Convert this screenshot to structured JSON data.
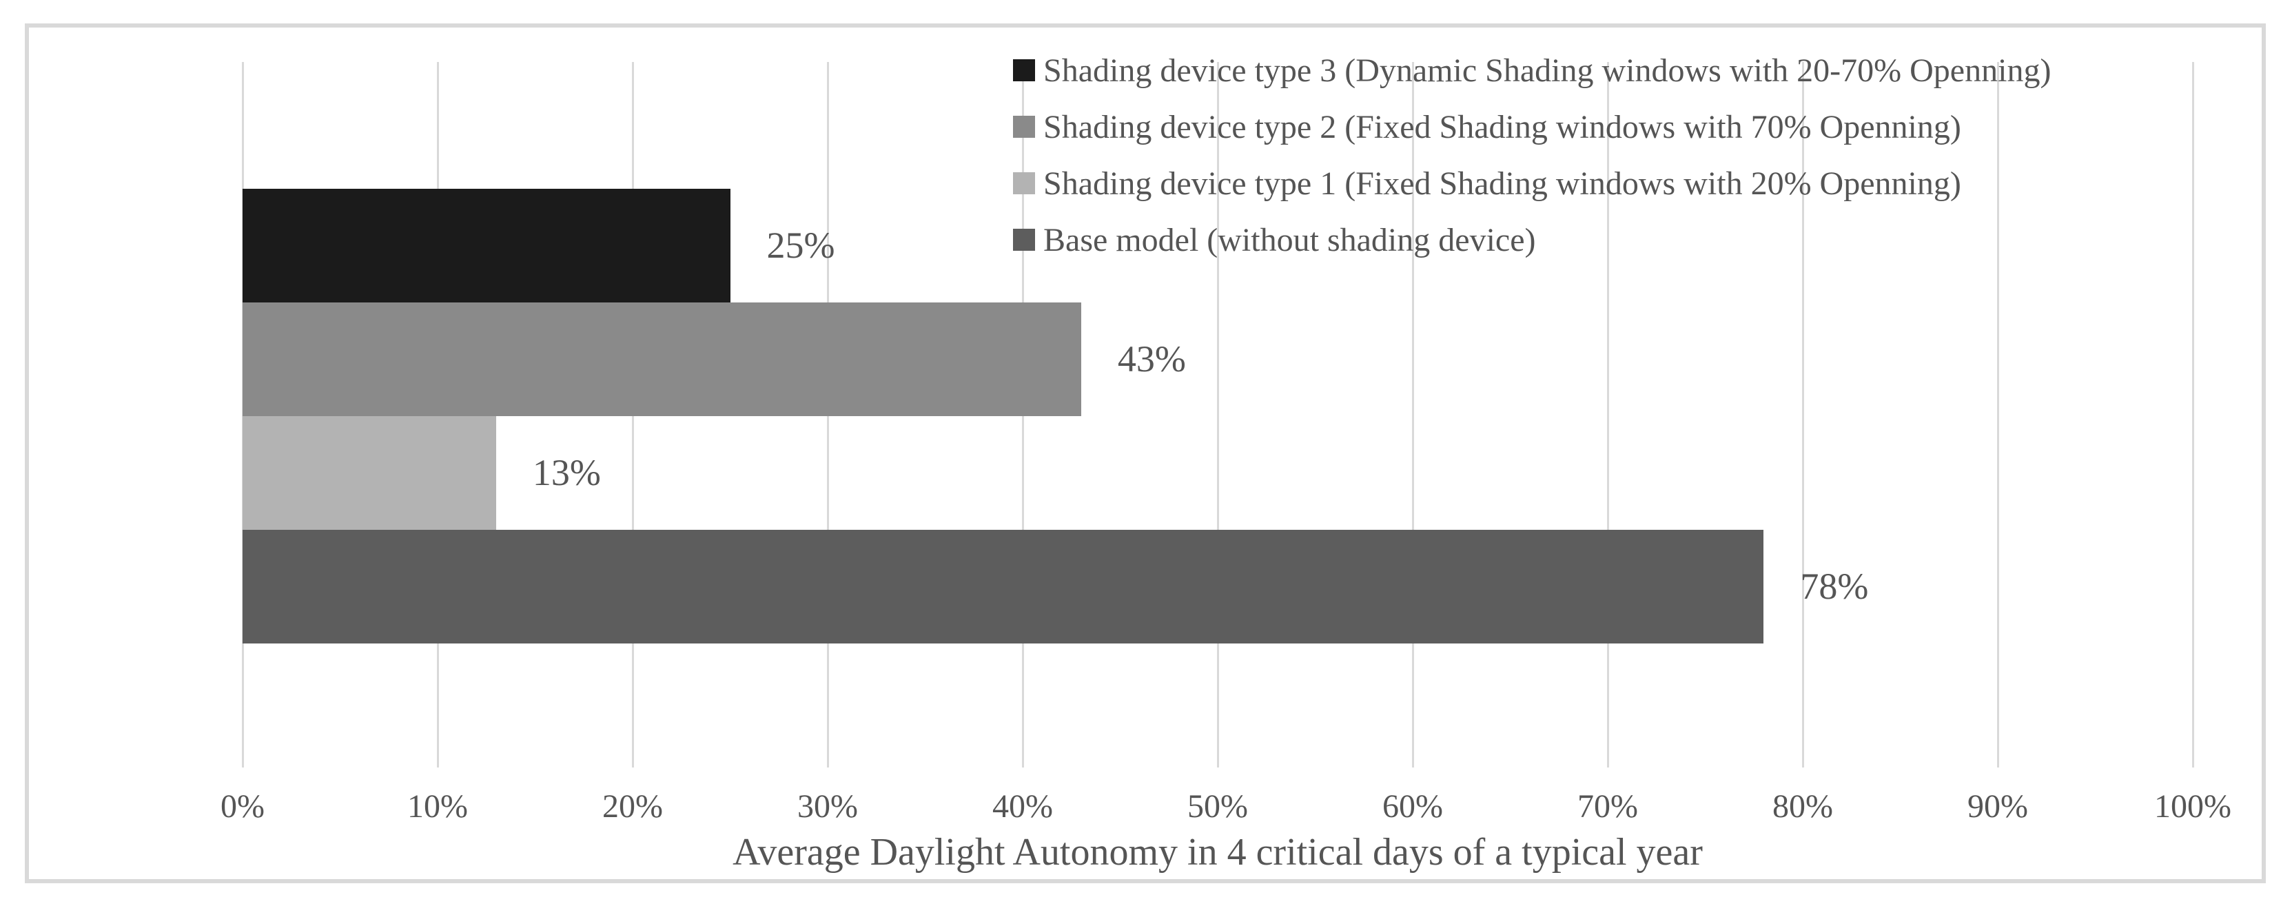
{
  "chart_data": {
    "type": "bar",
    "orientation": "horizontal",
    "title": "",
    "xlabel": "Average Daylight Autonomy in 4 critical days of a typical year",
    "ylabel": "",
    "categories": [
      "Shading device type 3 (Dynamic Shading windows with 20-70% Openning)",
      "Shading device type 2 (Fixed Shading windows with 70% Openning)",
      "Shading device type 1 (Fixed Shading windows with 20% Openning)",
      "Base model (without shading device)"
    ],
    "values": [
      25,
      43,
      13,
      78
    ],
    "value_labels": [
      "25%",
      "43%",
      "13%",
      "78%"
    ],
    "bar_colors": [
      "#1b1b1b",
      "#8a8a8a",
      "#b3b3b3",
      "#5d5d5d"
    ],
    "xlim": [
      0,
      100
    ],
    "x_tick_labels": [
      "0%",
      "10%",
      "20%",
      "30%",
      "40%",
      "50%",
      "60%",
      "70%",
      "80%",
      "90%",
      "100%"
    ],
    "grid": "vertical",
    "legend_position": "top-right",
    "legend": [
      {
        "label": "Shading device type 3 (Dynamic Shading windows with 20-70% Openning)",
        "color": "#1b1b1b"
      },
      {
        "label": "Shading device type 2 (Fixed Shading windows with 70% Openning)",
        "color": "#8a8a8a"
      },
      {
        "label": "Shading device type 1 (Fixed Shading windows with 20% Openning)",
        "color": "#b3b3b3"
      },
      {
        "label": "Base model (without shading device)",
        "color": "#5d5d5d"
      }
    ]
  },
  "styles": {
    "background": "#ffffff",
    "frame_color": "#d9d9d9",
    "grid_color": "#d9d9d9",
    "text_color": "#555555"
  }
}
